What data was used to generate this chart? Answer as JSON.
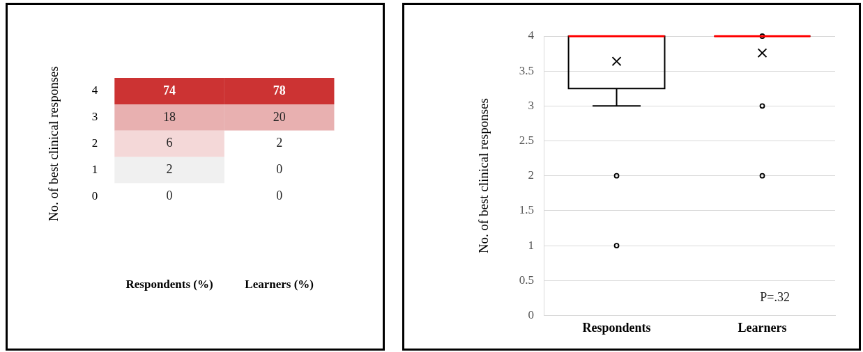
{
  "chart_data": [
    {
      "type": "heatmap",
      "ylabel": "No. of best clinical responses",
      "categories": [
        "Respondents (%)",
        "Learners (%)"
      ],
      "y_categories": [
        "4",
        "3",
        "2",
        "1",
        "0"
      ],
      "cells": [
        [
          74,
          78
        ],
        [
          18,
          20
        ],
        [
          6,
          2
        ],
        [
          2,
          0
        ],
        [
          0,
          0
        ]
      ],
      "colors": [
        [
          "#cc3333",
          "#cc3333"
        ],
        [
          "#e8b0b0",
          "#e8b0b0"
        ],
        [
          "#f4d8d8",
          "#ffffff"
        ],
        [
          "#f0f0f0",
          "#ffffff"
        ],
        [
          "#ffffff",
          "#ffffff"
        ]
      ],
      "data_labels": true
    },
    {
      "type": "box",
      "ylabel": "No. of best clinical responses",
      "categories": [
        "Respondents",
        "Learners"
      ],
      "boxes": [
        {
          "low": 3,
          "q1": 3.25,
          "median": 4,
          "q3": 4,
          "high": 4,
          "mean": 3.64,
          "outliers": [
            2,
            1
          ]
        },
        {
          "low": 4,
          "q1": 4,
          "median": 4,
          "q3": 4,
          "high": 4,
          "mean": 3.76,
          "outliers": [
            4,
            3,
            2
          ]
        }
      ],
      "ylim": [
        0,
        4
      ],
      "yticks": [
        0,
        0.5,
        1,
        1.5,
        2,
        2.5,
        3,
        3.5,
        4
      ],
      "grid": "y",
      "annotations": [
        "P=.32"
      ]
    }
  ]
}
